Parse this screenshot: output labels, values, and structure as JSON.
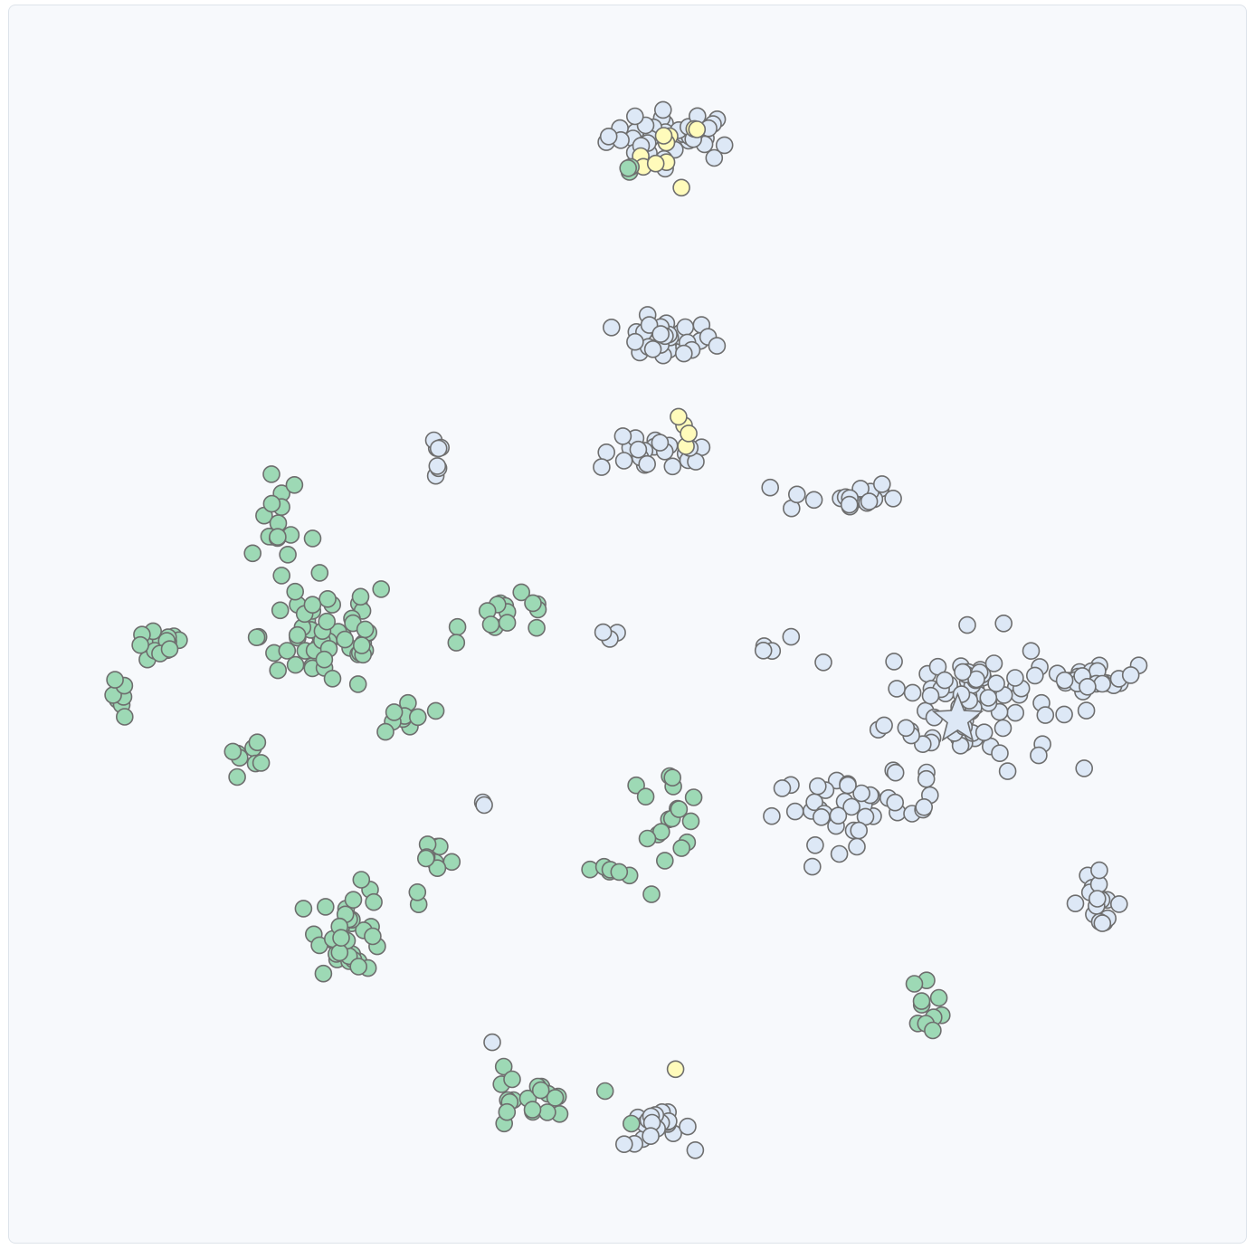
{
  "chart_data": {
    "type": "scatter",
    "title": "",
    "xlabel": "",
    "ylabel": "",
    "xlim": [
      0,
      100
    ],
    "ylim": [
      0,
      100
    ],
    "grid": false,
    "legend": "none",
    "colors": {
      "green": "#9dd9b5",
      "blue": "#dde8f6",
      "yellow": "#fffbbb",
      "stroke": "#6e6e6e",
      "background": "#f7f9fc"
    },
    "highlight": {
      "marker": "star",
      "color": "blue",
      "x": 77.5,
      "y": 42.5
    },
    "clusters": [
      {
        "color": "blue",
        "cx": 54.0,
        "cy": 91.0,
        "sx": 4.0,
        "sy": 1.5,
        "n": 40
      },
      {
        "color": "yellow",
        "cx": 53.5,
        "cy": 89.5,
        "sx": 2.0,
        "sy": 2.0,
        "n": 10
      },
      {
        "color": "green",
        "cx": 50.5,
        "cy": 88.3,
        "sx": 0.8,
        "sy": 0.4,
        "n": 3
      },
      {
        "color": "blue",
        "cx": 53.0,
        "cy": 74.0,
        "sx": 3.0,
        "sy": 1.2,
        "n": 30
      },
      {
        "color": "blue",
        "cx": 52.5,
        "cy": 64.5,
        "sx": 3.5,
        "sy": 1.0,
        "n": 25
      },
      {
        "color": "yellow",
        "cx": 55.0,
        "cy": 66.5,
        "sx": 0.7,
        "sy": 1.5,
        "n": 4
      },
      {
        "color": "blue",
        "cx": 67.5,
        "cy": 61.0,
        "sx": 3.5,
        "sy": 1.0,
        "n": 20
      },
      {
        "color": "blue",
        "cx": 34.0,
        "cy": 64.5,
        "sx": 0.5,
        "sy": 1.5,
        "n": 7
      },
      {
        "color": "blue",
        "cx": 78.5,
        "cy": 44.0,
        "sx": 5.0,
        "sy": 4.0,
        "n": 90
      },
      {
        "color": "blue",
        "cx": 89.0,
        "cy": 46.0,
        "sx": 2.5,
        "sy": 0.8,
        "n": 25
      },
      {
        "color": "blue",
        "cx": 69.0,
        "cy": 35.0,
        "sx": 5.0,
        "sy": 2.0,
        "n": 40
      },
      {
        "color": "blue",
        "cx": 89.0,
        "cy": 27.5,
        "sx": 1.5,
        "sy": 1.5,
        "n": 18
      },
      {
        "color": "blue",
        "cx": 52.5,
        "cy": 8.5,
        "sx": 2.0,
        "sy": 1.0,
        "n": 20
      },
      {
        "color": "green",
        "cx": 25.0,
        "cy": 49.5,
        "sx": 4.0,
        "sy": 3.5,
        "n": 60
      },
      {
        "color": "green",
        "cx": 11.0,
        "cy": 48.5,
        "sx": 1.5,
        "sy": 1.0,
        "n": 16
      },
      {
        "color": "green",
        "cx": 7.5,
        "cy": 44.0,
        "sx": 0.6,
        "sy": 1.2,
        "n": 8
      },
      {
        "color": "green",
        "cx": 21.0,
        "cy": 58.5,
        "sx": 1.2,
        "sy": 3.5,
        "n": 15
      },
      {
        "color": "green",
        "cx": 40.5,
        "cy": 51.0,
        "sx": 3.0,
        "sy": 1.2,
        "n": 15
      },
      {
        "color": "green",
        "cx": 31.5,
        "cy": 42.5,
        "sx": 1.5,
        "sy": 1.5,
        "n": 10
      },
      {
        "color": "green",
        "cx": 19.0,
        "cy": 39.5,
        "sx": 2.0,
        "sy": 1.5,
        "n": 8
      },
      {
        "color": "green",
        "cx": 27.0,
        "cy": 25.0,
        "sx": 2.0,
        "sy": 2.5,
        "n": 35
      },
      {
        "color": "green",
        "cx": 34.0,
        "cy": 30.0,
        "sx": 1.5,
        "sy": 2.0,
        "n": 10
      },
      {
        "color": "green",
        "cx": 53.0,
        "cy": 35.0,
        "sx": 2.5,
        "sy": 2.5,
        "n": 18
      },
      {
        "color": "green",
        "cx": 48.5,
        "cy": 30.0,
        "sx": 1.0,
        "sy": 0.4,
        "n": 6
      },
      {
        "color": "green",
        "cx": 41.5,
        "cy": 10.5,
        "sx": 3.0,
        "sy": 2.0,
        "n": 20
      },
      {
        "color": "green",
        "cx": 75.0,
        "cy": 19.0,
        "sx": 1.0,
        "sy": 1.5,
        "n": 10
      },
      {
        "color": "yellow",
        "cx": 54.0,
        "cy": 13.3,
        "sx": 0.3,
        "sy": 0.3,
        "n": 1
      },
      {
        "color": "green",
        "cx": 50.3,
        "cy": 8.8,
        "sx": 0.3,
        "sy": 0.3,
        "n": 1
      },
      {
        "color": "blue",
        "cx": 47.5,
        "cy": 49.5,
        "sx": 1.0,
        "sy": 0.6,
        "n": 3
      },
      {
        "color": "blue",
        "cx": 38.0,
        "cy": 35.5,
        "sx": 0.3,
        "sy": 0.3,
        "n": 2
      },
      {
        "color": "blue",
        "cx": 39.0,
        "cy": 16.0,
        "sx": 0.4,
        "sy": 0.4,
        "n": 1
      },
      {
        "color": "blue",
        "cx": 61.5,
        "cy": 48.5,
        "sx": 1.5,
        "sy": 0.6,
        "n": 4
      }
    ]
  }
}
